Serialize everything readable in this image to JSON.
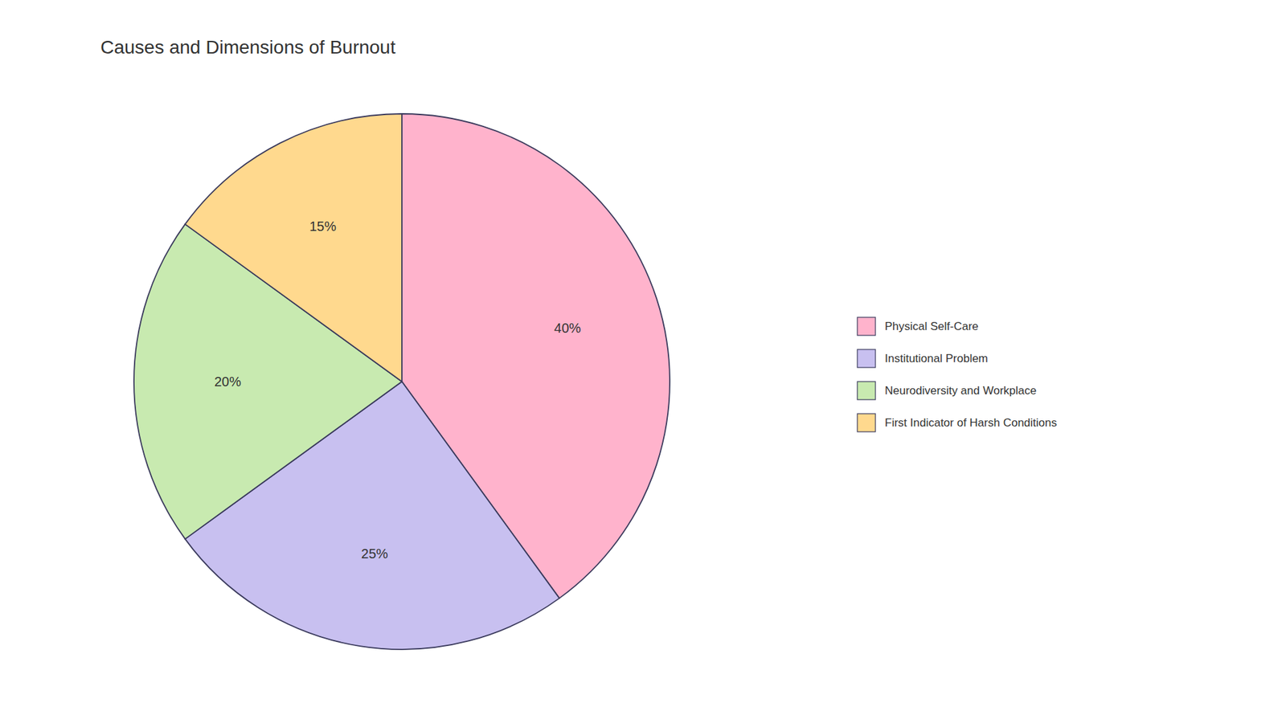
{
  "chart_data": {
    "type": "pie",
    "title": "Causes and Dimensions of Burnout",
    "categories": [
      "Physical Self-Care",
      "Institutional Problem",
      "Neurodiversity and Workplace",
      "First Indicator of Harsh Conditions"
    ],
    "values": [
      40,
      25,
      20,
      15
    ],
    "value_labels": [
      "40%",
      "25%",
      "20%",
      "15%"
    ],
    "colors": [
      "#FFB3CC",
      "#C8C0F0",
      "#C8EAB0",
      "#FFD98E"
    ],
    "data_labels": true,
    "legend": "right"
  }
}
